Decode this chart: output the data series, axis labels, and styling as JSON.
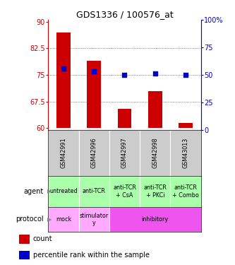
{
  "title": "GDS1336 / 100576_at",
  "samples": [
    "GSM42991",
    "GSM42996",
    "GSM42997",
    "GSM42998",
    "GSM43013"
  ],
  "bar_values": [
    87.0,
    79.0,
    65.5,
    70.5,
    61.5
  ],
  "bar_bottom": 60.0,
  "blue_values_pct": [
    56,
    53,
    50,
    51,
    50
  ],
  "bar_color": "#cc0000",
  "blue_color": "#0000cc",
  "ylim_left": [
    59.5,
    90.5
  ],
  "yticks_left": [
    60,
    67.5,
    75,
    82.5,
    90
  ],
  "ytick_labels_left": [
    "60",
    "67.5",
    "75",
    "82.5",
    "90"
  ],
  "ytick_labels_right": [
    "0",
    "25",
    "50",
    "75",
    "100%"
  ],
  "agent_labels": [
    "untreated",
    "anti-TCR",
    "anti-TCR\n+ CsA",
    "anti-TCR\n+ PKCi",
    "anti-TCR\n+ Combo"
  ],
  "sample_bg": "#cccccc",
  "agent_bg": "#aaffaa",
  "proto_mock_bg": "#ffaaff",
  "proto_stim_bg": "#ffaaff",
  "proto_inhib_bg": "#ee55ee",
  "grid_yticks": [
    67.5,
    75,
    82.5
  ],
  "label_fontsize": 7,
  "cell_fontsize": 5.8,
  "title_fontsize": 9
}
